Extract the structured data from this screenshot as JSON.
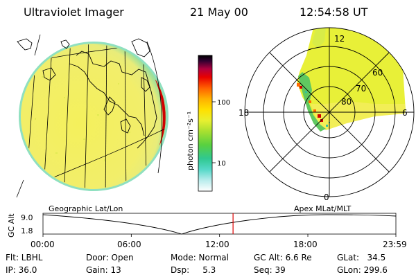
{
  "header": {
    "instrument": "Ultraviolet Imager",
    "date": "21 May 00",
    "time": "12:54:58 UT"
  },
  "colorbar": {
    "unit": "photon cm⁻²s⁻¹",
    "tick_100": "100",
    "tick_10": "10"
  },
  "polar_plot": {
    "mlt_labels": {
      "top": "12",
      "left": "18",
      "right": "6",
      "bottom": "0"
    },
    "lat_labels": {
      "r60": "60",
      "r70": "70",
      "r80": "80"
    }
  },
  "timeline": {
    "left_title": "Geographic Lat/Lon",
    "right_title": "Apex MLat/MLT",
    "ylabel": "GC Alt",
    "ymax": "9.0",
    "ymin": "1.8",
    "xticks": [
      "00:00",
      "06:00",
      "12:00",
      "18:00",
      "23:59"
    ],
    "current_time_marker": "12:55",
    "marker_color": "#dd0000"
  },
  "info": {
    "filter": "Flt: LBHL",
    "ip": "IP: 36.0",
    "door": "Door: Open",
    "gain": "Gain: 13",
    "mode": "Mode: Normal",
    "dsp": "Dsp:     5.3",
    "gc_alt": "GC Alt: 6.6 Re",
    "seq": "Seq: 39",
    "glat": "GLat:   34.5",
    "glon": "GLon: 299.6"
  }
}
